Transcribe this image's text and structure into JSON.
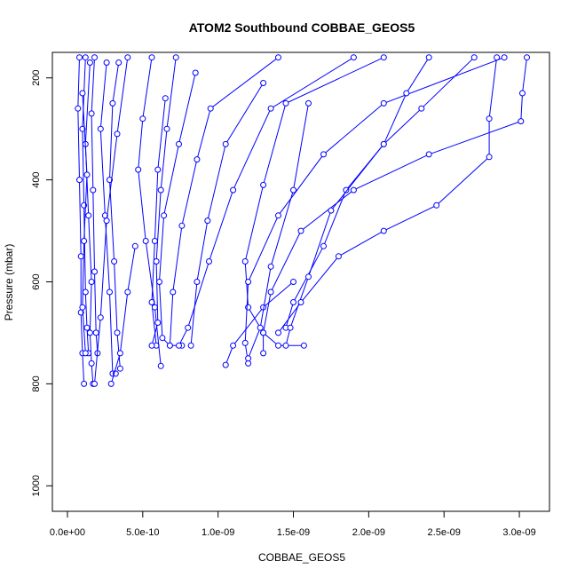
{
  "chart_data": {
    "type": "line",
    "title": "ATOM2 Southbound COBBAE_GEOS5",
    "xlabel": "COBBAE_GEOS5",
    "ylabel": "Pressure (mbar)",
    "xlim": [
      -1e-10,
      3.2e-09
    ],
    "ylim": [
      1050,
      150
    ],
    "y_reversed": true,
    "x_ticks": [
      0,
      5e-10,
      1e-09,
      1.5e-09,
      2e-09,
      2.5e-09,
      3e-09
    ],
    "x_tick_labels": [
      "0.0e+00",
      "5.0e-10",
      "1.0e-09",
      "1.5e-09",
      "2.0e-09",
      "2.5e-09",
      "3.0e-09"
    ],
    "y_ticks": [
      200,
      400,
      600,
      800,
      1000
    ],
    "y_tick_labels": [
      "200",
      "400",
      "600",
      "800",
      "1000"
    ],
    "line_color": "#0000ff",
    "marker": "open-circle",
    "grid": false,
    "series": [
      {
        "points": [
          [
            8e-11,
            160
          ],
          [
            7e-11,
            260
          ],
          [
            8e-11,
            400
          ],
          [
            9e-11,
            550
          ],
          [
            9e-11,
            660
          ],
          [
            1e-10,
            740
          ],
          [
            1.1e-10,
            800
          ]
        ]
      },
      {
        "points": [
          [
            1.2e-10,
            160
          ],
          [
            1e-10,
            300
          ],
          [
            1.1e-10,
            450
          ],
          [
            1.2e-10,
            620
          ],
          [
            1.3e-10,
            690
          ],
          [
            1.4e-10,
            740
          ]
        ]
      },
      {
        "points": [
          [
            1.5e-10,
            170
          ],
          [
            1.2e-10,
            330
          ],
          [
            1.4e-10,
            470
          ],
          [
            1.6e-10,
            600
          ],
          [
            1.5e-10,
            700
          ],
          [
            1.6e-10,
            760
          ],
          [
            1.7e-10,
            800
          ]
        ]
      },
      {
        "points": [
          [
            1.8e-10,
            160
          ],
          [
            1.6e-10,
            270
          ],
          [
            1.7e-10,
            420
          ],
          [
            1.8e-10,
            580
          ],
          [
            1.9e-10,
            700
          ],
          [
            2e-10,
            740
          ]
        ]
      },
      {
        "points": [
          [
            2.6e-10,
            170
          ],
          [
            2.2e-10,
            300
          ],
          [
            2.5e-10,
            470
          ],
          [
            2.8e-10,
            620
          ],
          [
            3e-10,
            780
          ],
          [
            3.2e-10,
            780
          ]
        ]
      },
      {
        "points": [
          [
            3.4e-10,
            170
          ],
          [
            3e-10,
            250
          ],
          [
            2.8e-10,
            400
          ],
          [
            3.1e-10,
            560
          ],
          [
            3.3e-10,
            700
          ],
          [
            3.5e-10,
            770
          ]
        ]
      },
      {
        "points": [
          [
            1e-10,
            230
          ],
          [
            1.3e-10,
            390
          ],
          [
            1.1e-10,
            520
          ],
          [
            1e-10,
            650
          ],
          [
            1.2e-10,
            740
          ]
        ]
      },
      {
        "points": [
          [
            4e-10,
            160
          ],
          [
            3.3e-10,
            310
          ],
          [
            2.6e-10,
            480
          ],
          [
            2.2e-10,
            670
          ],
          [
            1.8e-10,
            800
          ]
        ]
      },
      {
        "points": [
          [
            6.5e-10,
            240
          ],
          [
            6e-10,
            380
          ],
          [
            5.8e-10,
            520
          ],
          [
            5.6e-10,
            640
          ],
          [
            5.9e-10,
            725
          ]
        ]
      },
      {
        "points": [
          [
            8.5e-10,
            190
          ],
          [
            7.4e-10,
            330
          ],
          [
            6.4e-10,
            470
          ],
          [
            6.1e-10,
            600
          ],
          [
            6.3e-10,
            710
          ],
          [
            6.8e-10,
            725
          ]
        ]
      },
      {
        "points": [
          [
            1.4e-09,
            160
          ],
          [
            9.5e-10,
            260
          ],
          [
            8.6e-10,
            360
          ],
          [
            7.6e-10,
            490
          ],
          [
            7e-10,
            620
          ],
          [
            6.8e-10,
            725
          ],
          [
            7.6e-10,
            725
          ]
        ]
      },
      {
        "points": [
          [
            1.9e-09,
            160
          ],
          [
            1.35e-09,
            260
          ],
          [
            1.1e-09,
            420
          ],
          [
            9.4e-10,
            560
          ],
          [
            8e-10,
            690
          ],
          [
            7.4e-10,
            725
          ]
        ]
      },
      {
        "points": [
          [
            2.1e-09,
            160
          ],
          [
            1.45e-09,
            250
          ],
          [
            1.3e-09,
            410
          ],
          [
            1.18e-09,
            560
          ],
          [
            1.2e-09,
            650
          ],
          [
            1.3e-09,
            700
          ],
          [
            1.4e-09,
            725
          ],
          [
            1.57e-09,
            725
          ]
        ]
      },
      {
        "points": [
          [
            2.9e-09,
            160
          ],
          [
            2.1e-09,
            250
          ],
          [
            1.7e-09,
            350
          ],
          [
            1.4e-09,
            470
          ],
          [
            1.2e-09,
            600
          ],
          [
            1.18e-09,
            720
          ],
          [
            1.2e-09,
            760
          ]
        ]
      },
      {
        "points": [
          [
            3.05e-09,
            160
          ],
          [
            3.02e-09,
            230
          ],
          [
            3.01e-09,
            285
          ],
          [
            2.4e-09,
            350
          ],
          [
            1.9e-09,
            420
          ],
          [
            1.55e-09,
            500
          ],
          [
            1.35e-09,
            620
          ],
          [
            1.3e-09,
            700
          ],
          [
            1.3e-09,
            740
          ]
        ]
      },
      {
        "points": [
          [
            2.4e-09,
            160
          ],
          [
            2.25e-09,
            230
          ],
          [
            2.1e-09,
            330
          ],
          [
            1.85e-09,
            420
          ],
          [
            1.7e-09,
            530
          ],
          [
            1.5e-09,
            640
          ],
          [
            1.45e-09,
            690
          ]
        ]
      },
      {
        "points": [
          [
            2.7e-09,
            160
          ],
          [
            2.35e-09,
            260
          ],
          [
            2.1e-09,
            330
          ],
          [
            1.75e-09,
            460
          ],
          [
            1.6e-09,
            590
          ],
          [
            1.48e-09,
            690
          ],
          [
            1.45e-09,
            725
          ]
        ]
      },
      {
        "points": [
          [
            2.85e-09,
            160
          ],
          [
            2.8e-09,
            280
          ],
          [
            2.8e-09,
            355
          ],
          [
            2.45e-09,
            450
          ],
          [
            2.1e-09,
            500
          ],
          [
            1.8e-09,
            550
          ],
          [
            1.55e-09,
            640
          ],
          [
            1.4e-09,
            700
          ]
        ]
      },
      {
        "points": [
          [
            1.05e-09,
            763
          ],
          [
            1.1e-09,
            725
          ],
          [
            1.3e-09,
            650
          ],
          [
            1.5e-09,
            600
          ]
        ]
      },
      {
        "points": [
          [
            4.5e-10,
            530
          ],
          [
            4e-10,
            620
          ],
          [
            3.5e-10,
            740
          ],
          [
            2.9e-10,
            800
          ]
        ]
      },
      {
        "points": [
          [
            5.6e-10,
            160
          ],
          [
            5e-10,
            280
          ],
          [
            4.7e-10,
            380
          ],
          [
            5.2e-10,
            520
          ],
          [
            5.8e-10,
            650
          ],
          [
            6.2e-10,
            765
          ]
        ]
      },
      {
        "points": [
          [
            7.2e-10,
            160
          ],
          [
            6.6e-10,
            300
          ],
          [
            6.2e-10,
            420
          ],
          [
            5.9e-10,
            560
          ],
          [
            6e-10,
            680
          ],
          [
            5.6e-10,
            725
          ]
        ]
      },
      {
        "points": [
          [
            1.3e-09,
            210
          ],
          [
            1.05e-09,
            330
          ],
          [
            9.3e-10,
            480
          ],
          [
            8.6e-10,
            600
          ],
          [
            8.2e-10,
            725
          ]
        ]
      },
      {
        "points": [
          [
            1.6e-09,
            250
          ],
          [
            1.5e-09,
            420
          ],
          [
            1.35e-09,
            570
          ],
          [
            1.28e-09,
            690
          ],
          [
            1.2e-09,
            750
          ]
        ]
      }
    ]
  }
}
